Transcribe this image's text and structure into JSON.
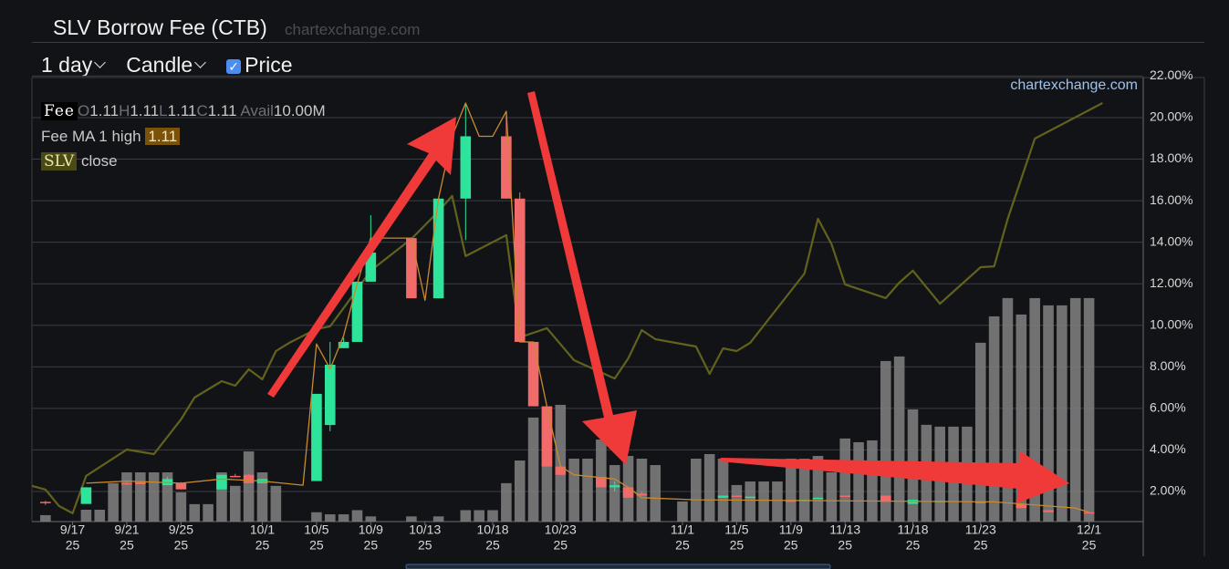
{
  "header": {
    "title": "SLV Borrow Fee (CTB)",
    "source": "chartexchange.com"
  },
  "controls": {
    "interval": "1 day",
    "style": "Candle",
    "price_toggle": "Price",
    "price_checked": true
  },
  "legend": {
    "fee_label": "Fee",
    "ohlc": [
      {
        "key": "O",
        "value": 1.11
      },
      {
        "key": "H",
        "value": 1.11
      },
      {
        "key": "L",
        "value": 1.11
      },
      {
        "key": "C",
        "value": 1.11
      }
    ],
    "avail_key": "Avail",
    "avail_value": "10.00M",
    "ma_label": "Fee MA 1 high",
    "ma_value": 1.11,
    "price_label": "SLV",
    "price_field": "close"
  },
  "chart_data": {
    "type": "candlestick",
    "watermark": "chartexchange.com",
    "xlim": [
      "2025-09-14",
      "2025-12-05"
    ],
    "ylim": [
      0.55,
      21.93
    ],
    "yticks": [
      {
        "value": 2,
        "label": "2.00%"
      },
      {
        "value": 4,
        "label": "4.00%"
      },
      {
        "value": 6,
        "label": "6.00%"
      },
      {
        "value": 8,
        "label": "8.00%"
      },
      {
        "value": 10,
        "label": "10.00%"
      },
      {
        "value": 12,
        "label": "12.00%"
      },
      {
        "value": 14,
        "label": "14.00%"
      },
      {
        "value": 16,
        "label": "16.00%"
      },
      {
        "value": 18,
        "label": "18.00%"
      },
      {
        "value": 20,
        "label": "20.00%"
      },
      {
        "value": 22,
        "label": "22.00%"
      }
    ],
    "xticks": [
      {
        "value": "2025-09-17",
        "label": "9/17",
        "year": "25"
      },
      {
        "value": "2025-09-21",
        "label": "9/21",
        "year": "25"
      },
      {
        "value": "2025-09-25",
        "label": "9/25",
        "year": "25"
      },
      {
        "value": "2025-10-01",
        "label": "10/1",
        "year": "25"
      },
      {
        "value": "2025-10-05",
        "label": "10/5",
        "year": "25"
      },
      {
        "value": "2025-10-09",
        "label": "10/9",
        "year": "25"
      },
      {
        "value": "2025-10-13",
        "label": "10/13",
        "year": "25"
      },
      {
        "value": "2025-10-18",
        "label": "10/18",
        "year": "25"
      },
      {
        "value": "2025-10-23",
        "label": "10/23",
        "year": "25"
      },
      {
        "value": "2025-11-01",
        "label": "11/1",
        "year": "25"
      },
      {
        "value": "2025-11-05",
        "label": "11/5",
        "year": "25"
      },
      {
        "value": "2025-11-09",
        "label": "11/9",
        "year": "25"
      },
      {
        "value": "2025-11-13",
        "label": "11/13",
        "year": "25"
      },
      {
        "value": "2025-11-18",
        "label": "11/18",
        "year": "25"
      },
      {
        "value": "2025-11-23",
        "label": "11/23",
        "year": "25"
      },
      {
        "value": "2025-12-01",
        "label": "12/1",
        "year": "25"
      }
    ],
    "bars": {
      "color": "#7c7c7c",
      "x": [
        "2025-09-15",
        "2025-09-18",
        "2025-09-19",
        "2025-09-20",
        "2025-09-21",
        "2025-09-22",
        "2025-09-23",
        "2025-09-24",
        "2025-09-25",
        "2025-09-26",
        "2025-09-27",
        "2025-09-28",
        "2025-09-29",
        "2025-09-30",
        "2025-10-01",
        "2025-10-02",
        "2025-10-05",
        "2025-10-06",
        "2025-10-07",
        "2025-10-08",
        "2025-10-09",
        "2025-10-12",
        "2025-10-14",
        "2025-10-16",
        "2025-10-17",
        "2025-10-18",
        "2025-10-19",
        "2025-10-20",
        "2025-10-21",
        "2025-10-22",
        "2025-10-23",
        "2025-10-24",
        "2025-10-25",
        "2025-10-26",
        "2025-10-27",
        "2025-10-28",
        "2025-10-29",
        "2025-10-30",
        "2025-11-01",
        "2025-11-02",
        "2025-11-03",
        "2025-11-04",
        "2025-11-05",
        "2025-11-06",
        "2025-11-07",
        "2025-11-08",
        "2025-11-09",
        "2025-11-10",
        "2025-11-11",
        "2025-11-12",
        "2025-11-13",
        "2025-11-14",
        "2025-11-15",
        "2025-11-16",
        "2025-11-17",
        "2025-11-18",
        "2025-11-19",
        "2025-11-20",
        "2025-11-21",
        "2025-11-22",
        "2025-11-23",
        "2025-11-24",
        "2025-11-25",
        "2025-11-26",
        "2025-11-27",
        "2025-11-28",
        "2025-11-29",
        "2025-11-30",
        "2025-12-01"
      ],
      "values": [
        0.86,
        1.12,
        1.12,
        2.4,
        2.92,
        2.92,
        2.92,
        2.92,
        1.96,
        1.39,
        1.39,
        2.92,
        2.27,
        3.93,
        2.92,
        2.27,
        1.0,
        0.9,
        0.9,
        1.1,
        0.8,
        0.8,
        0.8,
        1.1,
        1.1,
        1.1,
        2.4,
        3.49,
        5.56,
        5.9,
        6.17,
        3.58,
        3.58,
        4.5,
        3.27,
        3.71,
        3.58,
        3.27,
        1.52,
        3.58,
        3.8,
        3.58,
        2.31,
        2.48,
        2.48,
        2.48,
        3.58,
        3.58,
        3.71,
        2.92,
        4.55,
        4.37,
        4.46,
        8.28,
        8.5,
        5.95,
        5.21,
        5.12,
        5.12,
        5.12,
        9.16,
        10.43,
        11.31,
        10.52,
        11.31,
        10.96,
        10.96,
        11.31,
        11.31
      ]
    },
    "candles": {
      "up_color": "#2ee39a",
      "down_color": "#f26b6b",
      "x": [
        "2025-09-15",
        "2025-09-18",
        "2025-09-21",
        "2025-09-22",
        "2025-09-24",
        "2025-09-25",
        "2025-09-28",
        "2025-09-29",
        "2025-09-30",
        "2025-10-01",
        "2025-10-05",
        "2025-10-06",
        "2025-10-07",
        "2025-10-08",
        "2025-10-09",
        "2025-10-12",
        "2025-10-14",
        "2025-10-16",
        "2025-10-19",
        "2025-10-20",
        "2025-10-21",
        "2025-10-22",
        "2025-10-23",
        "2025-10-26",
        "2025-10-27",
        "2025-10-28",
        "2025-10-29",
        "2025-11-04",
        "2025-11-05",
        "2025-11-06",
        "2025-11-09",
        "2025-11-10",
        "2025-11-11",
        "2025-11-13",
        "2025-11-16",
        "2025-11-18",
        "2025-11-20",
        "2025-11-23",
        "2025-11-26",
        "2025-11-28",
        "2025-12-01"
      ],
      "open": [
        1.5,
        1.4,
        2.4,
        2.45,
        2.3,
        2.4,
        2.1,
        2.75,
        2.8,
        2.4,
        2.5,
        5.2,
        8.9,
        9.2,
        12.1,
        14.2,
        11.3,
        16.1,
        19.1,
        16.1,
        9.2,
        6.1,
        3.2,
        2.7,
        2.2,
        2.2,
        1.9,
        1.7,
        1.8,
        1.7,
        1.6,
        1.55,
        1.65,
        1.8,
        1.8,
        1.4,
        1.5,
        1.5,
        1.4,
        1.1,
        1.0
      ],
      "high": [
        1.55,
        2.2,
        2.45,
        2.5,
        2.7,
        2.45,
        2.8,
        2.85,
        2.85,
        2.6,
        6.7,
        9.2,
        9.4,
        12.1,
        15.3,
        14.2,
        16.1,
        20.7,
        20.3,
        16.4,
        9.2,
        6.1,
        3.2,
        2.7,
        2.5,
        2.2,
        2.0,
        1.8,
        1.8,
        1.75,
        1.6,
        1.6,
        1.7,
        1.8,
        1.8,
        1.6,
        1.55,
        1.5,
        1.4,
        1.1,
        1.0
      ],
      "low": [
        1.35,
        1.4,
        2.3,
        2.35,
        2.3,
        2.1,
        2.1,
        2.7,
        2.4,
        2.4,
        2.5,
        4.9,
        8.9,
        9.2,
        12.1,
        11.3,
        11.3,
        14.1,
        16.1,
        9.2,
        6.1,
        3.2,
        2.8,
        2.2,
        2.0,
        1.7,
        1.8,
        1.7,
        1.75,
        1.7,
        1.5,
        1.55,
        1.65,
        1.75,
        1.5,
        1.4,
        1.5,
        1.45,
        1.2,
        1.0,
        0.95
      ],
      "close": [
        1.45,
        2.2,
        2.35,
        2.35,
        2.6,
        2.1,
        2.8,
        2.7,
        2.4,
        2.6,
        6.7,
        8.1,
        9.2,
        12.1,
        13.5,
        11.3,
        16.1,
        19.1,
        16.1,
        9.2,
        6.1,
        3.2,
        2.8,
        2.2,
        2.3,
        1.7,
        1.8,
        1.8,
        1.75,
        1.75,
        1.5,
        1.6,
        1.7,
        1.75,
        1.5,
        1.6,
        1.55,
        1.45,
        1.2,
        1.0,
        0.95
      ]
    },
    "lines": [
      {
        "color": "#c98a2c",
        "width": 1.3,
        "x": [
          "2025-09-18",
          "2025-09-21",
          "2025-09-25",
          "2025-09-28",
          "2025-10-01",
          "2025-10-04",
          "2025-10-05",
          "2025-10-06",
          "2025-10-07",
          "2025-10-08",
          "2025-10-09",
          "2025-10-12",
          "2025-10-13",
          "2025-10-14",
          "2025-10-15",
          "2025-10-16",
          "2025-10-17",
          "2025-10-18",
          "2025-10-19",
          "2025-10-20",
          "2025-10-21",
          "2025-10-22",
          "2025-10-23",
          "2025-10-24",
          "2025-10-27",
          "2025-10-28",
          "2025-10-29",
          "2025-11-02",
          "2025-11-24",
          "2025-11-28",
          "2025-11-30",
          "2025-12-01"
        ],
        "values": [
          2.4,
          2.5,
          2.4,
          2.6,
          2.5,
          2.3,
          9.1,
          7.9,
          9.5,
          12.0,
          14.2,
          14.2,
          11.2,
          16.1,
          19.1,
          20.7,
          19.1,
          19.1,
          20.3,
          9.2,
          9.2,
          6.1,
          3.2,
          2.8,
          2.6,
          2.2,
          1.7,
          1.6,
          1.5,
          1.3,
          1.2,
          1.0
        ]
      },
      {
        "color": "#62621c",
        "width": 2.2,
        "x": [
          "2025-09-14",
          "2025-09-15",
          "2025-09-16",
          "2025-09-17",
          "2025-09-18",
          "2025-09-21",
          "2025-09-23",
          "2025-09-25",
          "2025-09-26",
          "2025-09-28",
          "2025-09-29",
          "2025-09-30",
          "2025-10-01",
          "2025-10-02",
          "2025-10-03",
          "2025-10-05",
          "2025-10-06",
          "2025-10-07",
          "2025-10-09",
          "2025-10-12",
          "2025-10-14",
          "2025-10-15",
          "2025-10-16",
          "2025-10-19",
          "2025-10-20",
          "2025-10-22",
          "2025-10-24",
          "2025-10-27",
          "2025-10-28",
          "2025-10-29",
          "2025-10-30",
          "2025-11-02",
          "2025-11-03",
          "2025-11-04",
          "2025-11-05",
          "2025-11-06",
          "2025-11-10",
          "2025-11-11",
          "2025-11-12",
          "2025-11-13",
          "2025-11-16",
          "2025-11-17",
          "2025-11-18",
          "2025-11-20",
          "2025-11-23",
          "2025-11-24",
          "2025-11-25",
          "2025-11-27",
          "2025-12-02"
        ],
        "values": [
          2.27,
          2.09,
          1.3,
          0.95,
          2.75,
          4.02,
          3.8,
          5.47,
          6.52,
          7.31,
          7.09,
          7.88,
          7.4,
          8.76,
          9.16,
          9.82,
          9.95,
          10.83,
          12.63,
          14.16,
          15.48,
          16.23,
          13.33,
          14.34,
          9.42,
          9.86,
          8.32,
          7.44,
          8.41,
          9.77,
          9.33,
          8.98,
          7.66,
          8.89,
          8.76,
          9.16,
          12.49,
          15.13,
          13.9,
          11.97,
          11.31,
          12.05,
          12.63,
          11.04,
          12.8,
          12.84,
          15.13,
          18.99,
          20.7
        ]
      }
    ],
    "grid": true
  }
}
